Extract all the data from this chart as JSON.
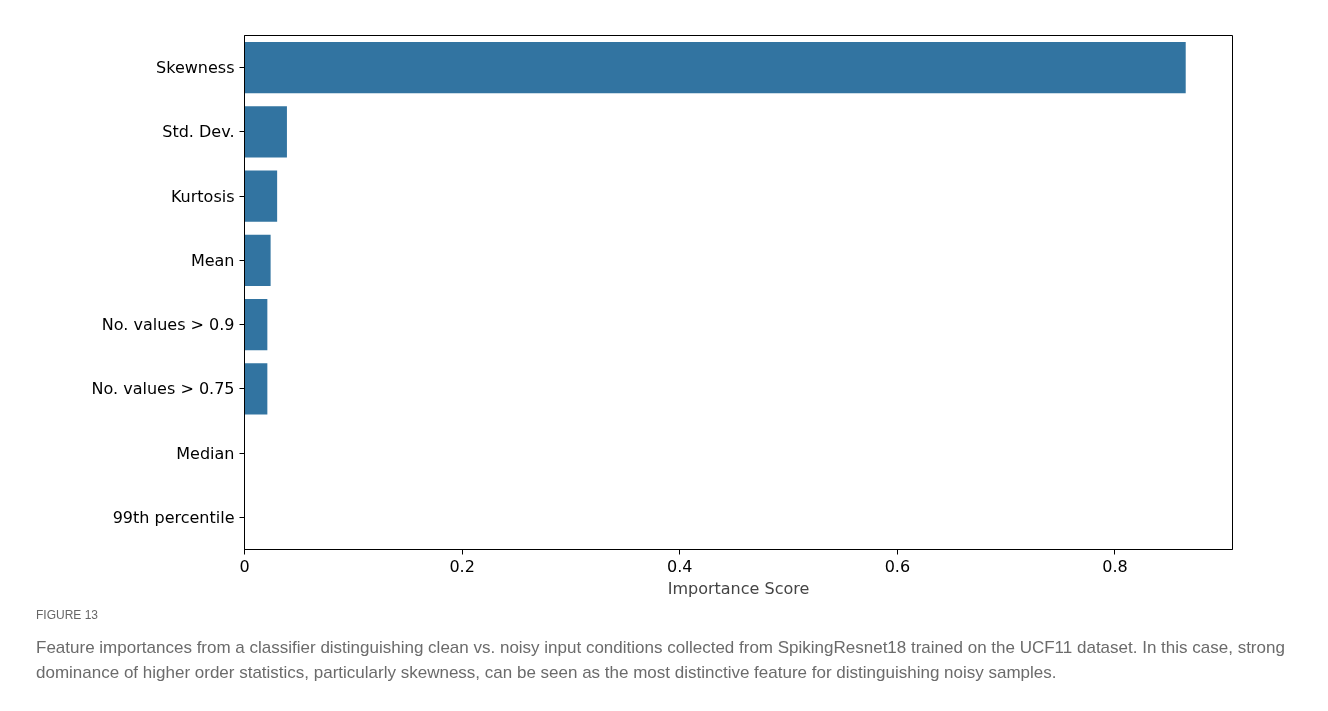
{
  "chart_data": {
    "type": "bar",
    "orientation": "horizontal",
    "xlabel": "Importance Score",
    "categories": [
      "Skewness",
      "Std. Dev.",
      "Kurtosis",
      "Mean",
      "No. values > 0.9",
      "No. values > 0.75",
      "Median",
      "99th percentile"
    ],
    "values": [
      0.865,
      0.039,
      0.03,
      0.024,
      0.021,
      0.021,
      0,
      0
    ],
    "color": "#3274a1",
    "xlim": [
      0,
      0.908
    ],
    "xticks": [
      0,
      0.2,
      0.4,
      0.6,
      0.8
    ],
    "grid": false,
    "annotations": [
      "FIGURE 13",
      "Feature importances from a classifier distinguishing clean vs. noisy input conditions collected from SpikingResnet18 trained on the UCF11 dataset. In this case, strong dominance of higher order statistics, particularly skewness, can be seen as the most distinctive feature for distinguishing noisy samples."
    ]
  }
}
